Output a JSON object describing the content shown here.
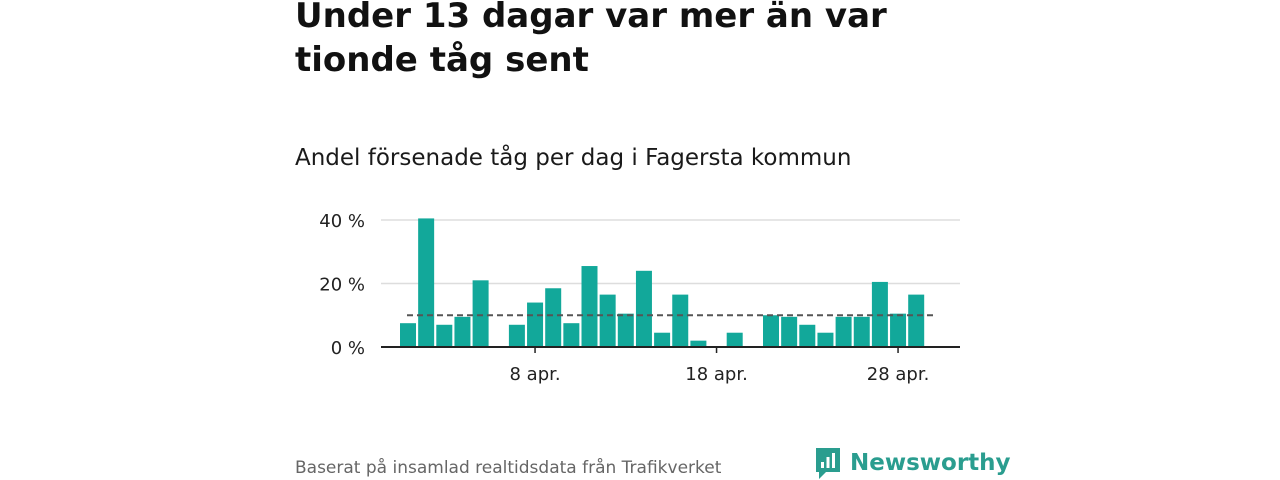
{
  "title": "Under 13 dagar var mer än var tionde tåg sent",
  "subtitle": "Andel försenade tåg per dag i Fagersta kommun",
  "footer": "Baserat på insamlad realtidsdata från Trafikverket",
  "brand": {
    "name": "Newsworthy",
    "icon": "bar-chart-speech-bubble-icon"
  },
  "colors": {
    "bar": "#12a89a",
    "average_line": "#555555",
    "grid": "#dddddd",
    "axis": "#222222",
    "brand": "#2a9d8f"
  },
  "chart_data": {
    "type": "bar",
    "title": "Andel försenade tåg per dag i Fagersta kommun",
    "xlabel": "",
    "ylabel": "",
    "unit": "%",
    "days": [
      1,
      2,
      3,
      4,
      5,
      6,
      7,
      8,
      9,
      10,
      11,
      12,
      13,
      14,
      15,
      16,
      17,
      18,
      19,
      20,
      21,
      22,
      23,
      24,
      25,
      26,
      27,
      28,
      29,
      30
    ],
    "values": [
      7.5,
      40.5,
      7,
      9.5,
      21,
      null,
      7,
      14,
      18.5,
      7.5,
      25.5,
      16.5,
      10.5,
      24,
      4.5,
      16.5,
      2,
      0,
      4.5,
      0,
      10,
      9.5,
      7,
      4.5,
      9.5,
      9.5,
      20.5,
      10.5,
      16.5,
      null
    ],
    "average": 10,
    "ylim": [
      0,
      40
    ],
    "yticks": [
      {
        "value": 0,
        "label": "0 %"
      },
      {
        "value": 20,
        "label": "20 %"
      },
      {
        "value": 40,
        "label": "40 %"
      }
    ],
    "xticks": [
      {
        "day": 8,
        "label": "8 apr."
      },
      {
        "day": 18,
        "label": "18 apr."
      },
      {
        "day": 28,
        "label": "28 apr."
      }
    ],
    "grid": true
  }
}
